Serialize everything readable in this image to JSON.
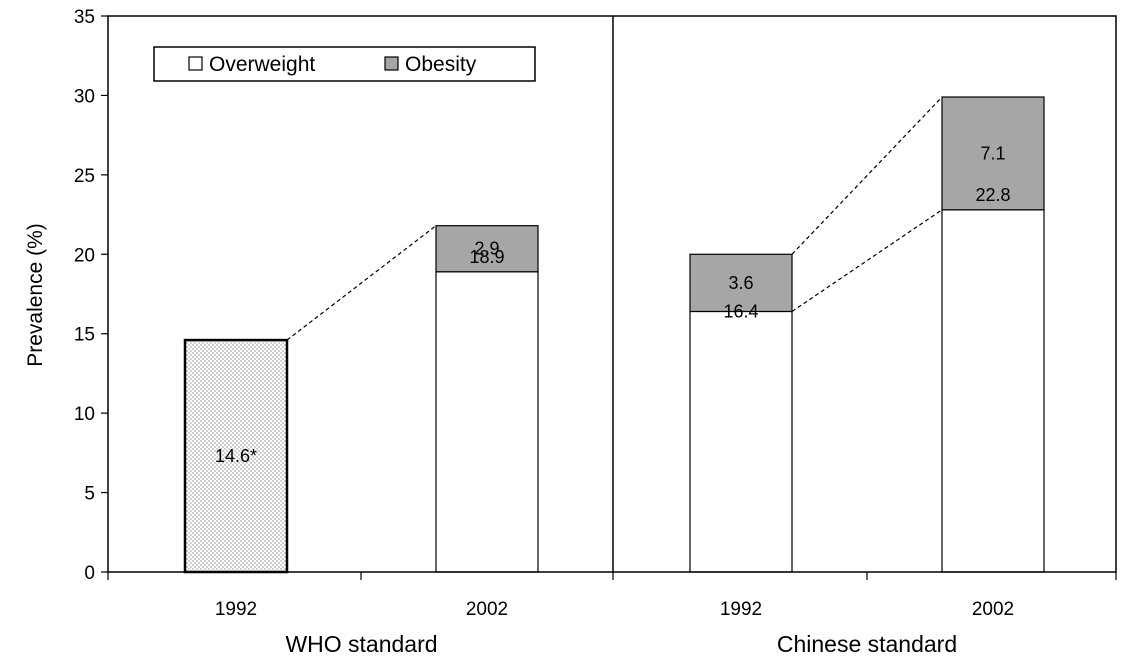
{
  "chart_data": {
    "type": "bar",
    "stacked": true,
    "title": "",
    "ylabel": "Prevalence (%)",
    "ylim": [
      0,
      35
    ],
    "yticks": [
      0,
      5,
      10,
      15,
      20,
      25,
      30,
      35
    ],
    "grid": false,
    "legend_position": "top-left",
    "legend": [
      {
        "name": "Overweight",
        "color": "#ffffff"
      },
      {
        "name": "Obesity",
        "color": "#a6a6a6"
      }
    ],
    "groups": [
      {
        "label": "WHO standard",
        "bars": [
          {
            "category": "1992",
            "combined": 14.6,
            "combined_label": "14.6*"
          },
          {
            "category": "2002",
            "overweight": 18.9,
            "obesity": 2.9
          }
        ]
      },
      {
        "label": "Chinese standard",
        "bars": [
          {
            "category": "1992",
            "overweight": 16.4,
            "obesity": 3.6
          },
          {
            "category": "2002",
            "overweight": 22.8,
            "obesity": 7.1
          }
        ]
      }
    ],
    "colors": {
      "overweight": "#ffffff",
      "obesity": "#a6a6a6",
      "combined_fill": "#f2f2f2",
      "stroke": "#000000"
    }
  }
}
